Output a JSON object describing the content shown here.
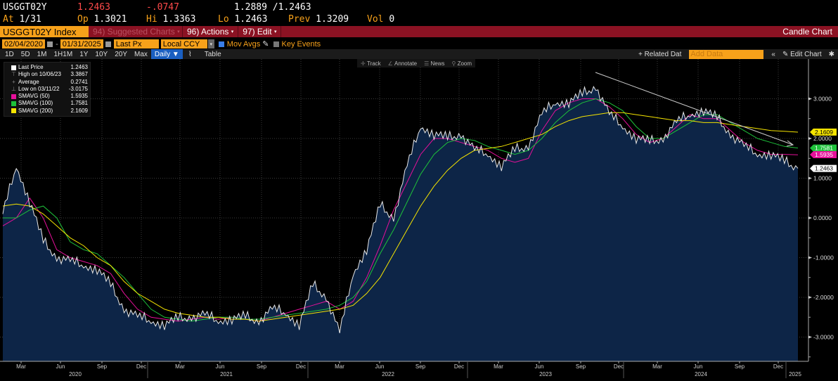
{
  "quote": {
    "ticker": "USGGT02Y",
    "last": "1.2463",
    "change": "-.0747",
    "bid_ask": "1.2889 /1.2463",
    "at_label": "At",
    "at_value": "1/31",
    "open_label": "Op",
    "open_value": "1.3021",
    "high_label": "Hi",
    "high_value": "1.3363",
    "low_label": "Lo",
    "low_value": "1.2463",
    "prev_label": "Prev",
    "prev_value": "1.3209",
    "vol_label": "Vol",
    "vol_value": "0"
  },
  "titlebar": {
    "security": "USGGT02Y Index",
    "suggested": "94) Suggested Charts",
    "actions": "96) Actions",
    "edit": "97) Edit",
    "chart_type": "Candle Chart"
  },
  "controls": {
    "start_date": "02/04/2020",
    "end_date": "01/31/2025",
    "field": "Last Px",
    "currency": "Local CCY",
    "mov_avgs": "Mov Avgs",
    "key_events": "Key Events"
  },
  "range": {
    "buttons": [
      "1D",
      "5D",
      "1M",
      "1H1M",
      "1Y",
      "10Y",
      "20Y",
      "Max"
    ],
    "frequency": "Daily ▼",
    "table": "Table",
    "related": "+ Related Dat",
    "add_data_placeholder": "Add Data",
    "edit_chart": "Edit Chart"
  },
  "toolstrip": {
    "track": "Track",
    "annotate": "Annotate",
    "news": "News",
    "zoom": "Zoom"
  },
  "legend": [
    {
      "label": "Last Price",
      "value": "1.2463",
      "color": "#ffffff",
      "kind": "swatch"
    },
    {
      "label": "High on 10/06/23",
      "value": "3.3867",
      "kind": "icon",
      "icon": "⊤"
    },
    {
      "label": "Average",
      "value": "0.2741",
      "kind": "icon",
      "icon": "+"
    },
    {
      "label": "Low on 03/11/22",
      "value": "-3.0175",
      "kind": "icon",
      "icon": "⊥"
    },
    {
      "label": "SMAVG (50)",
      "value": "1.5935",
      "color": "#e6109a",
      "kind": "swatch"
    },
    {
      "label": "SMAVG (100)",
      "value": "1.7581",
      "color": "#1ec23a",
      "kind": "swatch"
    },
    {
      "label": "SMAVG (200)",
      "value": "2.1609",
      "color": "#f5e400",
      "kind": "swatch"
    }
  ],
  "chart_data": {
    "type": "area",
    "title": "USGGT02Y Index",
    "xlabel": "",
    "ylabel": "",
    "ylim": [
      -3.6,
      4.0
    ],
    "yticks": [
      3,
      2,
      1,
      0,
      -1,
      -2,
      -3
    ],
    "ytick_labels": [
      "3.0000",
      "2.0000",
      "1.0000",
      "0.0000",
      "-1.0000",
      "-2.0000",
      "-3.0000"
    ],
    "x_month_labels": [
      "Mar",
      "Jun",
      "Sep",
      "Dec",
      "Mar",
      "Jun",
      "Sep",
      "Dec",
      "Mar",
      "Jun",
      "Sep",
      "Dec",
      "Mar",
      "Jun",
      "Sep",
      "Dec",
      "Mar",
      "Jun",
      "Sep",
      "Dec"
    ],
    "x_year_labels": [
      "2020",
      "2021",
      "2022",
      "2023",
      "2024",
      "2025"
    ],
    "grid": true,
    "x": [
      "2020-02",
      "2020-03",
      "2020-04",
      "2020-05",
      "2020-06",
      "2020-07",
      "2020-08",
      "2020-09",
      "2020-10",
      "2020-11",
      "2020-12",
      "2021-01",
      "2021-02",
      "2021-03",
      "2021-04",
      "2021-05",
      "2021-06",
      "2021-07",
      "2021-08",
      "2021-09",
      "2021-10",
      "2021-11",
      "2021-12",
      "2022-01",
      "2022-02",
      "2022-03",
      "2022-04",
      "2022-05",
      "2022-06",
      "2022-07",
      "2022-08",
      "2022-09",
      "2022-10",
      "2022-11",
      "2022-12",
      "2023-01",
      "2023-02",
      "2023-03",
      "2023-04",
      "2023-05",
      "2023-06",
      "2023-07",
      "2023-08",
      "2023-09",
      "2023-10",
      "2023-11",
      "2023-12",
      "2024-01",
      "2024-02",
      "2024-03",
      "2024-04",
      "2024-05",
      "2024-06",
      "2024-07",
      "2024-08",
      "2024-09",
      "2024-10",
      "2024-11",
      "2024-12",
      "2025-01"
    ],
    "series": [
      {
        "name": "Last Price",
        "color": "#ffffff",
        "values": [
          0.1,
          1.3,
          0.4,
          -0.6,
          -1.0,
          -1.1,
          -1.2,
          -1.3,
          -1.7,
          -2.3,
          -2.5,
          -2.6,
          -2.7,
          -2.55,
          -2.5,
          -2.45,
          -2.6,
          -2.55,
          -2.5,
          -2.6,
          -2.3,
          -2.4,
          -2.7,
          -1.7,
          -2.0,
          -2.9,
          -1.4,
          -0.8,
          0.3,
          0.0,
          1.3,
          2.3,
          2.1,
          2.0,
          2.1,
          1.7,
          1.6,
          1.3,
          1.7,
          1.8,
          2.6,
          2.9,
          2.9,
          3.1,
          3.3,
          2.6,
          2.3,
          2.0,
          1.9,
          2.0,
          2.4,
          2.6,
          2.7,
          2.5,
          2.1,
          1.8,
          1.6,
          1.6,
          1.4,
          1.25
        ]
      },
      {
        "name": "SMAVG (50)",
        "color": "#e6109a",
        "values": [
          -0.2,
          0.0,
          0.5,
          0.0,
          -0.8,
          -1.0,
          -1.1,
          -1.2,
          -1.4,
          -1.9,
          -2.3,
          -2.5,
          -2.55,
          -2.6,
          -2.55,
          -2.5,
          -2.55,
          -2.5,
          -2.55,
          -2.6,
          -2.5,
          -2.4,
          -2.3,
          -2.2,
          -2.1,
          -2.3,
          -2.1,
          -1.5,
          -0.7,
          0.2,
          0.9,
          1.6,
          2.0,
          2.0,
          1.9,
          1.8,
          1.7,
          1.5,
          1.4,
          1.5,
          2.2,
          2.7,
          2.9,
          3.0,
          3.0,
          2.8,
          2.5,
          2.1,
          1.9,
          2.0,
          2.3,
          2.6,
          2.5,
          2.5,
          2.2,
          1.9,
          1.7,
          1.6,
          1.6,
          1.59
        ]
      },
      {
        "name": "SMAVG (100)",
        "color": "#1ec23a",
        "values": [
          0.0,
          0.0,
          0.2,
          0.3,
          0.0,
          -0.6,
          -0.8,
          -0.9,
          -1.2,
          -1.5,
          -1.9,
          -2.3,
          -2.5,
          -2.55,
          -2.6,
          -2.55,
          -2.5,
          -2.5,
          -2.55,
          -2.55,
          -2.5,
          -2.45,
          -2.4,
          -2.35,
          -2.3,
          -2.2,
          -2.0,
          -1.6,
          -0.9,
          -0.3,
          0.4,
          1.1,
          1.6,
          1.9,
          2.0,
          1.95,
          1.8,
          1.7,
          1.6,
          1.7,
          2.0,
          2.4,
          2.7,
          2.9,
          3.0,
          2.9,
          2.7,
          2.3,
          2.0,
          2.0,
          2.2,
          2.4,
          2.6,
          2.6,
          2.4,
          2.2,
          2.0,
          1.9,
          1.8,
          1.76
        ]
      },
      {
        "name": "SMAVG (200)",
        "color": "#f5e400",
        "values": [
          0.3,
          0.35,
          0.3,
          0.1,
          -0.2,
          -0.5,
          -0.7,
          -1.0,
          -1.2,
          -1.6,
          -1.9,
          -2.1,
          -2.3,
          -2.4,
          -2.45,
          -2.5,
          -2.5,
          -2.55,
          -2.55,
          -2.6,
          -2.55,
          -2.5,
          -2.45,
          -2.4,
          -2.35,
          -2.3,
          -2.2,
          -1.9,
          -1.5,
          -0.9,
          -0.3,
          0.3,
          0.8,
          1.2,
          1.5,
          1.7,
          1.75,
          1.8,
          1.9,
          2.0,
          2.1,
          2.3,
          2.45,
          2.55,
          2.6,
          2.65,
          2.65,
          2.6,
          2.55,
          2.5,
          2.45,
          2.45,
          2.4,
          2.4,
          2.35,
          2.3,
          2.25,
          2.2,
          2.18,
          2.16
        ]
      }
    ],
    "annotations": [
      {
        "type": "trendline",
        "from": [
          "2023-10",
          3.6
        ],
        "to": [
          "2025-01",
          1.9
        ],
        "color": "#cccccc"
      }
    ],
    "axis_tags": [
      {
        "value": "2.1609",
        "y": 2.1609,
        "bg": "#f5e400",
        "fg": "#000"
      },
      {
        "value": "1.7581",
        "y": 1.7581,
        "bg": "#1ec23a",
        "fg": "#fff"
      },
      {
        "value": "1.5935",
        "y": 1.5935,
        "bg": "#e6109a",
        "fg": "#fff"
      },
      {
        "value": "1.2463",
        "y": 1.2463,
        "bg": "#ffffff",
        "fg": "#000"
      }
    ]
  }
}
